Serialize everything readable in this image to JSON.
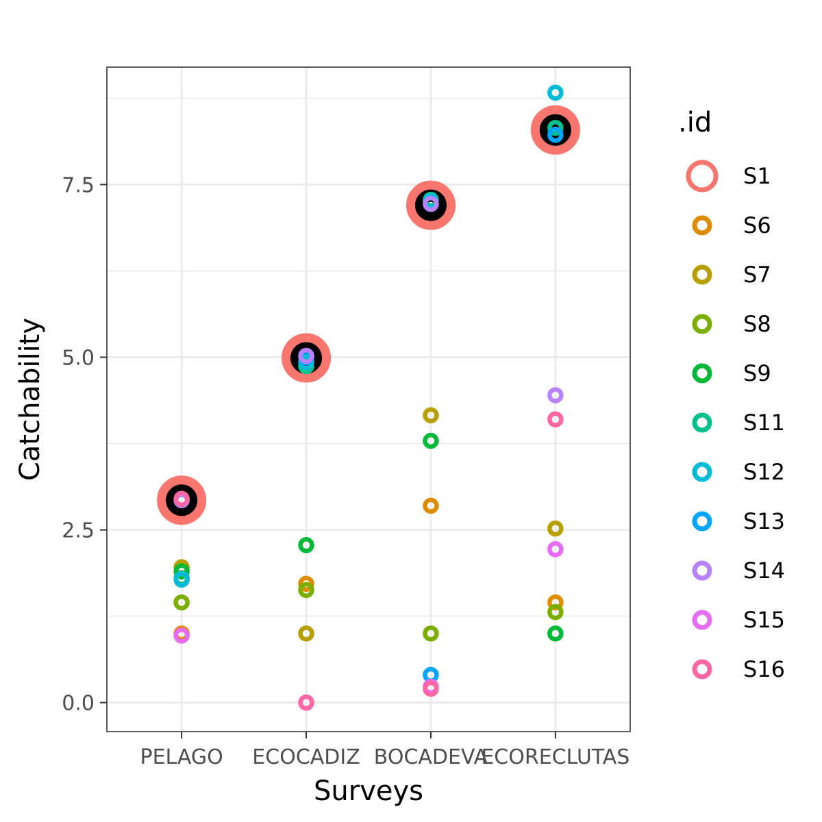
{
  "chart_data": {
    "type": "scatter",
    "xlabel": "Surveys",
    "ylabel": "Catchability",
    "categories": [
      "PELAGO",
      "ECOCADIZ",
      "BOCADEVA",
      "ECORECLUTAS"
    ],
    "y_ticks": [
      "0.0",
      "2.5",
      "5.0",
      "7.5"
    ],
    "ylim": [
      -0.42,
      9.2
    ],
    "grid": true,
    "legend": {
      "title": ".id",
      "position": "right"
    },
    "series": [
      {
        "name": "S1",
        "color": "#F8766D",
        "values": [
          2.93,
          4.99,
          7.2,
          8.29
        ]
      },
      {
        "name": "S6",
        "color": "#DE8C00",
        "values": [
          1.0,
          1.72,
          2.85,
          1.45
        ]
      },
      {
        "name": "S7",
        "color": "#B79F00",
        "values": [
          1.96,
          1.0,
          4.16,
          2.52
        ]
      },
      {
        "name": "S8",
        "color": "#7CAE00",
        "values": [
          1.45,
          1.63,
          1.0,
          1.31
        ]
      },
      {
        "name": "S9",
        "color": "#00BA38",
        "values": [
          1.9,
          2.28,
          3.79,
          1.0
        ]
      },
      {
        "name": "S11",
        "color": "#00C08B",
        "values": [
          1.8,
          4.87,
          7.28,
          8.32
        ]
      },
      {
        "name": "S12",
        "color": "#00BCD8",
        "values": [
          1.78,
          4.93,
          7.26,
          8.83
        ]
      },
      {
        "name": "S13",
        "color": "#00A5FF",
        "values": [
          2.93,
          5.0,
          0.4,
          8.22
        ]
      },
      {
        "name": "S14",
        "color": "#B983FF",
        "values": [
          2.93,
          5.02,
          7.22,
          4.45
        ]
      },
      {
        "name": "S15",
        "color": "#E76BF3",
        "values": [
          0.97,
          0.0,
          0.23,
          2.22
        ]
      },
      {
        "name": "S16",
        "color": "#FF67A4",
        "values": [
          2.95,
          0.0,
          0.2,
          4.1
        ]
      }
    ]
  }
}
